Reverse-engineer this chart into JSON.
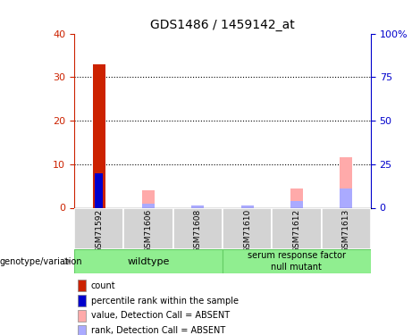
{
  "title": "GDS1486 / 1459142_at",
  "samples": [
    "GSM71592",
    "GSM71606",
    "GSM71608",
    "GSM71610",
    "GSM71612",
    "GSM71613"
  ],
  "count_values": [
    33,
    0,
    0,
    0,
    0,
    0
  ],
  "percentile_rank_values": [
    8,
    0,
    0,
    0,
    0,
    0
  ],
  "absent_value_values": [
    0,
    4,
    0,
    0,
    4.5,
    11.5
  ],
  "absent_rank_values": [
    0.5,
    1,
    0.5,
    0.5,
    1.5,
    4.5
  ],
  "ylim_left": [
    -18,
    40
  ],
  "ylim_right": [
    -45,
    100
  ],
  "yticks_left": [
    0,
    10,
    20,
    30,
    40
  ],
  "yticks_right": [
    0,
    25,
    50,
    75,
    100
  ],
  "count_color": "#cc2200",
  "percentile_color": "#0000cc",
  "absent_value_color": "#ffaaaa",
  "absent_rank_color": "#aaaaff",
  "bar_width": 0.25,
  "genotype_label": "genotype/variation",
  "wildtype_label": "wildtype",
  "mutant_label": "serum response factor\nnull mutant",
  "legend_items": [
    {
      "color": "#cc2200",
      "label": "count",
      "marker": "s"
    },
    {
      "color": "#0000cc",
      "label": "percentile rank within the sample",
      "marker": "s"
    },
    {
      "color": "#ffaaaa",
      "label": "value, Detection Call = ABSENT",
      "marker": "s"
    },
    {
      "color": "#aaaaff",
      "label": "rank, Detection Call = ABSENT",
      "marker": "s"
    }
  ]
}
